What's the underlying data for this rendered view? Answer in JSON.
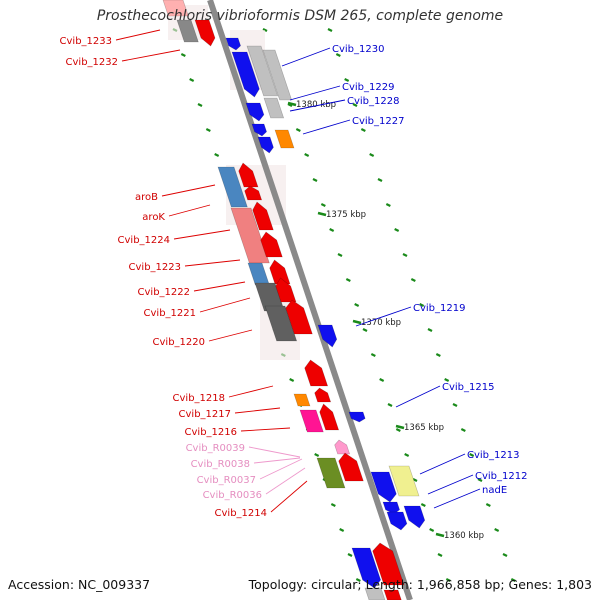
{
  "title": "Prosthecochloris vibrioformis DSM 265, complete genome",
  "footer": {
    "accession": "Accession: NC_009337",
    "summary": "Topology: circular; Length: 1,966,858 bp; Genes: 1,803"
  },
  "colors": {
    "backbone": "#8a8a8a",
    "red_gene": "#ee0000",
    "blue_gene": "#1010ee",
    "rna_gene": "#ff66cc",
    "tick": "#1a8a1a"
  },
  "ticks": [
    "1380 kbp",
    "1375 kbp",
    "1370 kbp",
    "1365 kbp",
    "1360 kbp"
  ],
  "left_labels": [
    {
      "text": "Cvib_1233",
      "color": "red"
    },
    {
      "text": "Cvib_1232",
      "color": "red"
    },
    {
      "text": "aroB",
      "color": "red"
    },
    {
      "text": "aroK",
      "color": "red"
    },
    {
      "text": "Cvib_1224",
      "color": "red"
    },
    {
      "text": "Cvib_1223",
      "color": "red"
    },
    {
      "text": "Cvib_1222",
      "color": "red"
    },
    {
      "text": "Cvib_1221",
      "color": "red"
    },
    {
      "text": "Cvib_1220",
      "color": "red"
    },
    {
      "text": "Cvib_1218",
      "color": "red"
    },
    {
      "text": "Cvib_1217",
      "color": "red"
    },
    {
      "text": "Cvib_1216",
      "color": "red"
    },
    {
      "text": "Cvib_R0039",
      "color": "pink"
    },
    {
      "text": "Cvib_R0038",
      "color": "pink"
    },
    {
      "text": "Cvib_R0037",
      "color": "pink"
    },
    {
      "text": "Cvib_R0036",
      "color": "pink"
    },
    {
      "text": "Cvib_1214",
      "color": "red"
    }
  ],
  "right_labels": [
    {
      "text": "Cvib_1230",
      "color": "blue"
    },
    {
      "text": "Cvib_1229",
      "color": "blue"
    },
    {
      "text": "Cvib_1228",
      "color": "blue"
    },
    {
      "text": "Cvib_1227",
      "color": "blue"
    },
    {
      "text": "Cvib_1219",
      "color": "blue"
    },
    {
      "text": "Cvib_1215",
      "color": "blue"
    },
    {
      "text": "Cvib_1213",
      "color": "blue"
    },
    {
      "text": "Cvib_1212",
      "color": "blue"
    },
    {
      "text": "nadE",
      "color": "blue"
    }
  ]
}
